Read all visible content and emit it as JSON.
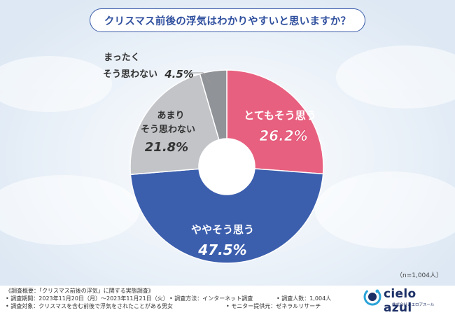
{
  "title": "クリスマス前後の浮気はわかりやすいと思いますか？",
  "chart_data": {
    "type": "pie",
    "donut": true,
    "title": "クリスマス前後の浮気はわかりやすいと思いますか？",
    "slices": [
      {
        "label": "とてもそう思う",
        "value": 26.2,
        "display": "26.2%",
        "color": "#e8607f"
      },
      {
        "label": "ややそう思う",
        "value": 47.5,
        "display": "47.5%",
        "color": "#3b5ead"
      },
      {
        "label": "あまりそう思わない",
        "value": 21.8,
        "display": "21.8%",
        "color": "#c2c4c8"
      },
      {
        "label": "まったくそう思わない",
        "value": 4.5,
        "display": "4.5%",
        "color": "#909398"
      }
    ],
    "sample_size": "（n=1,004人）"
  },
  "labels": {
    "slice1_l1": "とてもそう思う",
    "slice1_val": "26.2%",
    "slice2_l1": "ややそう思う",
    "slice2_val": "47.5%",
    "slice3_l1": "あまり",
    "slice3_l2": "そう思わない",
    "slice3_val": "21.8%",
    "slice4_l1": "まったく",
    "slice4_l2": "そう思わない",
    "slice4_val": "4.5%"
  },
  "footer": {
    "line1": "《調査概要：「クリスマス前後の浮気」に関する実態調査》",
    "line2a": "• 調査期間：2023年11月20日（月）〜2023年11月21日（火）",
    "line2b": "• 調査方法：インターネット調査",
    "line2c": "• 調査人数：1,004人",
    "line3a": "• 調査対象：クリスマスを含む前後で浮気をされたことがある男女",
    "line3b": "• モニター提供元：ゼネラルリサーチ"
  },
  "logo": {
    "name": "cielo azul",
    "sub": "株式会社シエロアスール"
  }
}
